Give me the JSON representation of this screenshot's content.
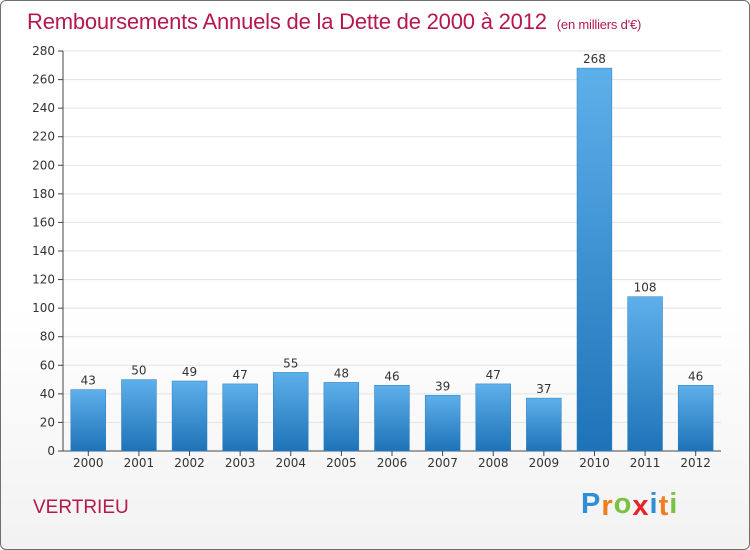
{
  "title": "Remboursements Annuels de la Dette de 2000 à 2012",
  "subtitle": "(en milliers d'€)",
  "commune": "VERTRIEU",
  "logo": {
    "text": "Proxiti",
    "letters": [
      "P",
      "r",
      "o",
      "x",
      "i",
      "t",
      "i"
    ],
    "colors": [
      "#2e8fd6",
      "#f07d1e",
      "#7cc242",
      "#e8212a",
      "#2e8fd6",
      "#f07d1e",
      "#7cc242"
    ]
  },
  "colors": {
    "title": "#b5174f",
    "bar_top": "#5eb0ea",
    "bar_bottom": "#1e73b8",
    "axis": "#444444",
    "grid": "#e3e3e3"
  },
  "chart_data": {
    "type": "bar",
    "categories": [
      "2000",
      "2001",
      "2002",
      "2003",
      "2004",
      "2005",
      "2006",
      "2007",
      "2008",
      "2009",
      "2010",
      "2011",
      "2012"
    ],
    "values": [
      43,
      50,
      49,
      47,
      55,
      48,
      46,
      39,
      47,
      37,
      268,
      108,
      46
    ],
    "title": "Remboursements Annuels de la Dette de 2000 à 2012",
    "subtitle": "(en milliers d'€)",
    "xlabel": "",
    "ylabel": "",
    "ylim": [
      0,
      280
    ],
    "yticks": [
      0,
      20,
      40,
      60,
      80,
      100,
      120,
      140,
      160,
      180,
      200,
      220,
      240,
      260,
      280
    ],
    "grid": true,
    "data_labels": true
  }
}
